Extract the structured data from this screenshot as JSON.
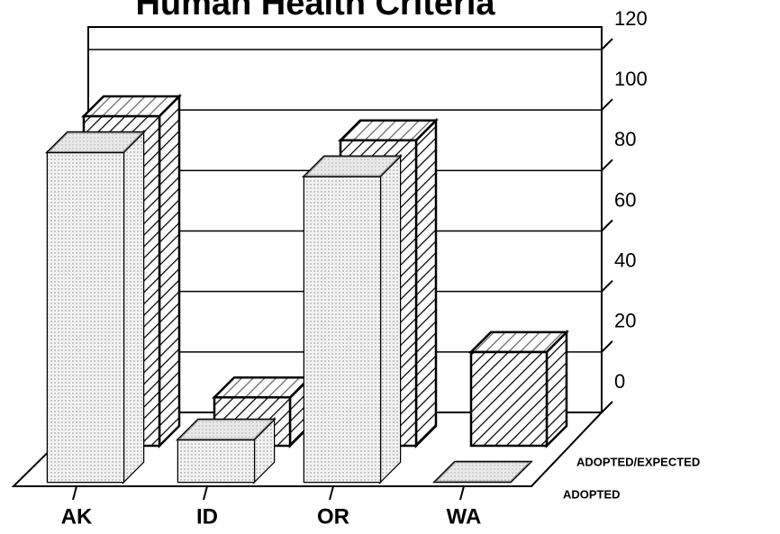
{
  "chart_data": {
    "type": "bar3d",
    "title": "Human Health Criteria",
    "categories": [
      "AK",
      "ID",
      "OR",
      "WA"
    ],
    "series": [
      {
        "name": "ADOPTED",
        "color": "#dcdcdc",
        "values": [
          109,
          14,
          101,
          0
        ]
      },
      {
        "name": "ADOPTED/EXPECTED",
        "color": "#ffffff",
        "values": [
          109,
          16,
          101,
          31
        ]
      }
    ],
    "ylim": [
      0,
      120
    ],
    "yticks": [
      0,
      20,
      40,
      60,
      80,
      100,
      120
    ],
    "grid": true
  }
}
